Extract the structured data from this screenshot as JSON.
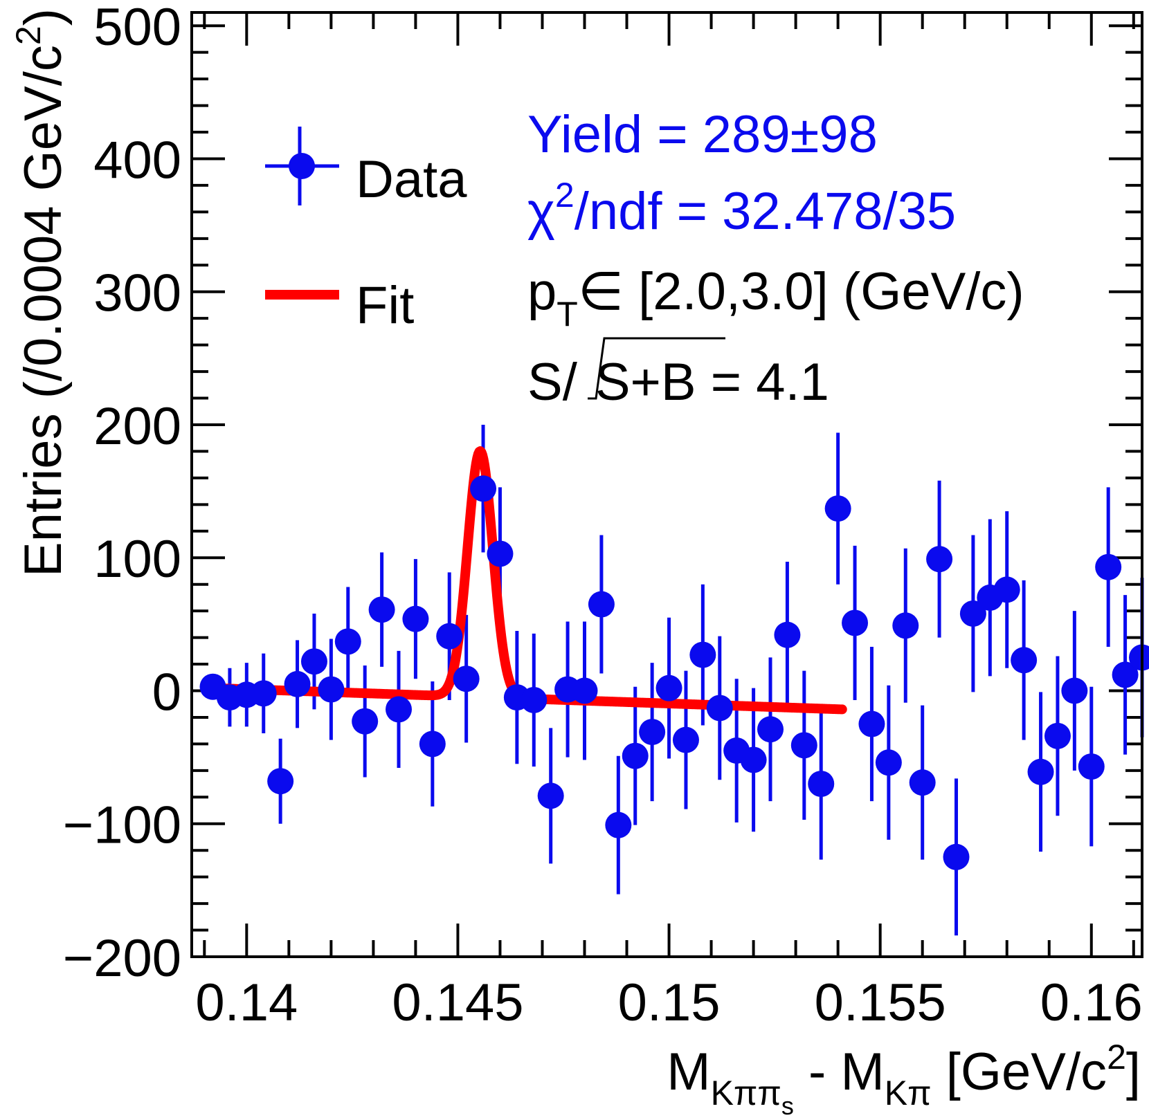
{
  "chart_data": {
    "type": "scatter",
    "title": "",
    "xlabel": {
      "main": "M",
      "sub1": "Kππ",
      "sub1_sub": "s",
      "mid": " - M",
      "sub2": "Kπ",
      "tail_a": " [GeV/c",
      "sup": "2",
      "tail_b": "]"
    },
    "ylabel": {
      "main": "Entries (/0.0004 GeV/c",
      "sup": "2",
      "tail": ")"
    },
    "xlim": [
      0.1387,
      0.1612
    ],
    "ylim": [
      -200,
      510
    ],
    "x_ticks": [
      {
        "value": 0.14,
        "label": "0.14"
      },
      {
        "value": 0.145,
        "label": "0.145"
      },
      {
        "value": 0.15,
        "label": "0.15"
      },
      {
        "value": 0.155,
        "label": "0.155"
      },
      {
        "value": 0.16,
        "label": "0.16"
      }
    ],
    "y_ticks": [
      {
        "value": -200,
        "label": "−200"
      },
      {
        "value": -100,
        "label": "−100"
      },
      {
        "value": 0,
        "label": "0"
      },
      {
        "value": 100,
        "label": "100"
      },
      {
        "value": 200,
        "label": "200"
      },
      {
        "value": 300,
        "label": "300"
      },
      {
        "value": 400,
        "label": "400"
      },
      {
        "value": 500,
        "label": "500"
      }
    ],
    "colors": {
      "data": "#0a0aee",
      "fit": "#ff0000",
      "axis": "#000000",
      "text": "#000000",
      "annotation_blue": "#0a0aee"
    },
    "legend": {
      "position": "top-left",
      "entries": [
        {
          "label": "Data",
          "kind": "marker"
        },
        {
          "label": "Fit",
          "kind": "line"
        }
      ]
    },
    "annotations": {
      "yield": "Yield = 289±98",
      "chi2_sym": "χ",
      "chi2_sup": "2",
      "chi2_rest": "/ndf = 32.478/35",
      "pt_p": "p",
      "pt_sub": "T",
      "pt_rest": "∈ [2.0,3.0] (GeV/c)",
      "sig_pre": "S/",
      "sig_root": "S+B",
      "sig_post": " = 4.1"
    },
    "series": [
      {
        "name": "Data",
        "kind": "points_with_errors",
        "points": [
          {
            "x": 0.1392,
            "y": 3,
            "err": 5
          },
          {
            "x": 0.1396,
            "y": -5,
            "err": 22
          },
          {
            "x": 0.14,
            "y": -3,
            "err": 24
          },
          {
            "x": 0.1404,
            "y": -2,
            "err": 30
          },
          {
            "x": 0.1408,
            "y": -68,
            "err": 32
          },
          {
            "x": 0.1412,
            "y": 5,
            "err": 33
          },
          {
            "x": 0.1416,
            "y": 22,
            "err": 36
          },
          {
            "x": 0.142,
            "y": 1,
            "err": 38
          },
          {
            "x": 0.1424,
            "y": 37,
            "err": 41
          },
          {
            "x": 0.1428,
            "y": -23,
            "err": 42
          },
          {
            "x": 0.1432,
            "y": 61,
            "err": 43
          },
          {
            "x": 0.1436,
            "y": -14,
            "err": 44
          },
          {
            "x": 0.144,
            "y": 54,
            "err": 45
          },
          {
            "x": 0.1444,
            "y": -40,
            "err": 47
          },
          {
            "x": 0.1448,
            "y": 41,
            "err": 48
          },
          {
            "x": 0.1452,
            "y": 9,
            "err": 48
          },
          {
            "x": 0.1456,
            "y": 152,
            "err": 48
          },
          {
            "x": 0.146,
            "y": 103,
            "err": 50
          },
          {
            "x": 0.1464,
            "y": -5,
            "err": 50
          },
          {
            "x": 0.1468,
            "y": -7,
            "err": 50
          },
          {
            "x": 0.1472,
            "y": -79,
            "err": 51
          },
          {
            "x": 0.1476,
            "y": 1,
            "err": 51
          },
          {
            "x": 0.148,
            "y": 0,
            "err": 52
          },
          {
            "x": 0.1484,
            "y": 65,
            "err": 52
          },
          {
            "x": 0.1488,
            "y": -101,
            "err": 52
          },
          {
            "x": 0.1492,
            "y": -49,
            "err": 52
          },
          {
            "x": 0.1496,
            "y": -31,
            "err": 52
          },
          {
            "x": 0.15,
            "y": 2,
            "err": 53
          },
          {
            "x": 0.1504,
            "y": -37,
            "err": 52
          },
          {
            "x": 0.1508,
            "y": 27,
            "err": 53
          },
          {
            "x": 0.1512,
            "y": -13,
            "err": 54
          },
          {
            "x": 0.1516,
            "y": -45,
            "err": 54
          },
          {
            "x": 0.152,
            "y": -52,
            "err": 54
          },
          {
            "x": 0.1524,
            "y": -29,
            "err": 54
          },
          {
            "x": 0.1528,
            "y": 42,
            "err": 55
          },
          {
            "x": 0.1532,
            "y": -41,
            "err": 56
          },
          {
            "x": 0.1536,
            "y": -70,
            "err": 57
          },
          {
            "x": 0.154,
            "y": 137,
            "err": 57
          },
          {
            "x": 0.1544,
            "y": 51,
            "err": 58
          },
          {
            "x": 0.1548,
            "y": -25,
            "err": 58
          },
          {
            "x": 0.1552,
            "y": -54,
            "err": 58
          },
          {
            "x": 0.1556,
            "y": 49,
            "err": 58
          },
          {
            "x": 0.156,
            "y": -69,
            "err": 58
          },
          {
            "x": 0.1564,
            "y": 99,
            "err": 59
          },
          {
            "x": 0.1568,
            "y": -125,
            "err": 59
          },
          {
            "x": 0.1572,
            "y": 58,
            "err": 59
          },
          {
            "x": 0.1576,
            "y": 70,
            "err": 59
          },
          {
            "x": 0.158,
            "y": 76,
            "err": 59
          },
          {
            "x": 0.1584,
            "y": 23,
            "err": 60
          },
          {
            "x": 0.1588,
            "y": -61,
            "err": 60
          },
          {
            "x": 0.1592,
            "y": -34,
            "err": 60
          },
          {
            "x": 0.1596,
            "y": 0,
            "err": 60
          },
          {
            "x": 0.16,
            "y": -57,
            "err": 60
          },
          {
            "x": 0.1604,
            "y": 93,
            "err": 60
          },
          {
            "x": 0.1608,
            "y": 12,
            "err": 60
          },
          {
            "x": 0.1612,
            "y": 25,
            "err": 60
          }
        ]
      },
      {
        "name": "Fit",
        "kind": "curve",
        "range": [
          0.1392,
          0.1541
        ],
        "model": {
          "background_at_start": 2,
          "background_at_end": -14,
          "peak_mean": 0.14553,
          "peak_sigma": 0.0003,
          "peak_height": 185
        }
      }
    ]
  }
}
